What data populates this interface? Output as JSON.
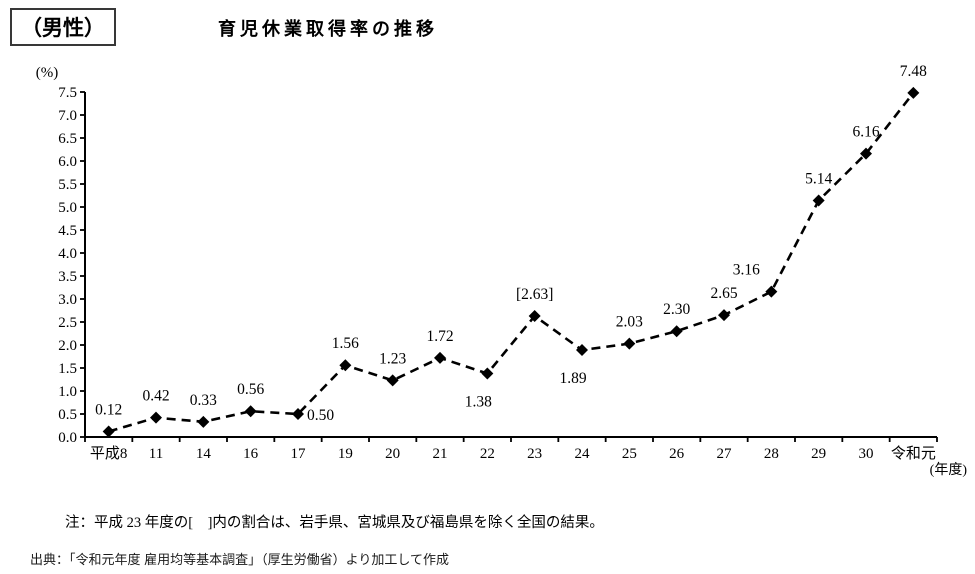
{
  "header": {
    "gender_label": "（男性）"
  },
  "notes": {
    "footnote": "注：平成 23 年度の[　]内の割合は、岩手県、宮城県及び福島県を除く全国の結果。",
    "source": "出典：「令和元年度 雇用均等基本調査」（厚生労働省）より加工して作成"
  },
  "chart_data": {
    "type": "line",
    "title": "育児休業取得率の推移",
    "y_unit": "(%)",
    "x_unit": "(年度)",
    "ylim": [
      0.0,
      7.5
    ],
    "ytick_step": 0.5,
    "grid": false,
    "legend": "none",
    "line_style": "dashed",
    "marker": "diamond",
    "color": "#000000",
    "categories": [
      "平成8",
      "11",
      "14",
      "16",
      "17",
      "19",
      "20",
      "21",
      "22",
      "23",
      "24",
      "25",
      "26",
      "27",
      "28",
      "29",
      "30",
      "令和元"
    ],
    "values": [
      0.12,
      0.42,
      0.33,
      0.56,
      0.5,
      1.56,
      1.23,
      1.72,
      1.38,
      2.63,
      1.89,
      2.03,
      2.3,
      2.65,
      3.16,
      5.14,
      6.16,
      7.48
    ],
    "point_labels": [
      "0.12",
      "0.42",
      "0.33",
      "0.56",
      "0.50",
      "1.56",
      "1.23",
      "1.72",
      "1.38",
      "[2.63]",
      "1.89",
      "2.03",
      "2.30",
      "2.65",
      "3.16",
      "5.14",
      "6.16",
      "7.48"
    ],
    "label_positions": [
      "above",
      "above",
      "above",
      "above",
      "right",
      "above",
      "above",
      "above",
      "below",
      "above",
      "below",
      "above",
      "above",
      "above",
      "above-left",
      "above",
      "above",
      "above"
    ]
  }
}
